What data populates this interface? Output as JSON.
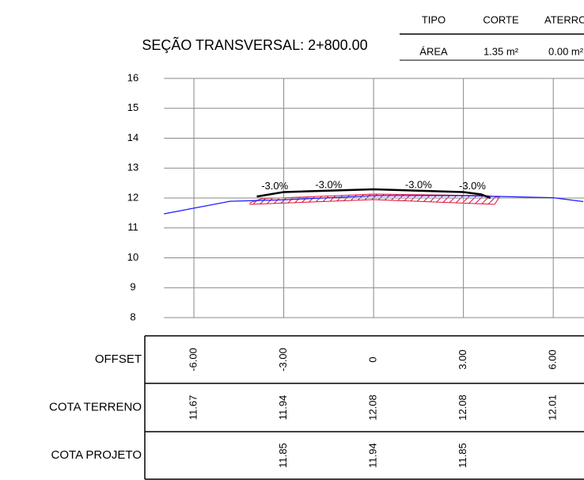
{
  "chart_data": {
    "type": "line",
    "title": "SEÇÃO TRANSVERSAL: 2+800.00",
    "xlim": [
      -7,
      7
    ],
    "xticks": [
      -6,
      -3,
      0,
      3,
      6
    ],
    "ylim": [
      8,
      16
    ],
    "yticks": [
      8,
      9,
      10,
      11,
      12,
      13,
      14,
      15,
      16
    ],
    "grid": true,
    "series": [
      {
        "color": "#1a1aff",
        "x": [
          -7,
          -4.8,
          -3,
          0,
          3,
          6,
          7
        ],
        "values": [
          11.47,
          11.89,
          11.94,
          12.08,
          12.08,
          12.01,
          11.88
        ]
      },
      {
        "color": "#000000",
        "x": [
          -3.9,
          -3,
          0,
          3,
          3.6,
          3.9
        ],
        "values": [
          12.05,
          12.2,
          12.29,
          12.2,
          12.12,
          12.0
        ]
      }
    ],
    "annotations": [
      "-3.0%",
      "-3.0%",
      "-3.0%",
      "-3.0%"
    ]
  },
  "summary": {
    "header": [
      "TIPO",
      "CORTE",
      "ATERRO"
    ],
    "row": [
      "ÁREA",
      "1.35 m²",
      "0.00 m²"
    ]
  },
  "table": {
    "rows": [
      {
        "label": "OFFSET",
        "values": [
          "-6.00",
          "-3.00",
          "0",
          "3.00",
          "6.00"
        ]
      },
      {
        "label": "COTA TERRENO",
        "values": [
          "11.67",
          "11.94",
          "12.08",
          "12.08",
          "12.01"
        ]
      },
      {
        "label": "COTA PROJETO",
        "values": [
          null,
          "11.85",
          "11.94",
          "11.85",
          null
        ]
      }
    ]
  }
}
